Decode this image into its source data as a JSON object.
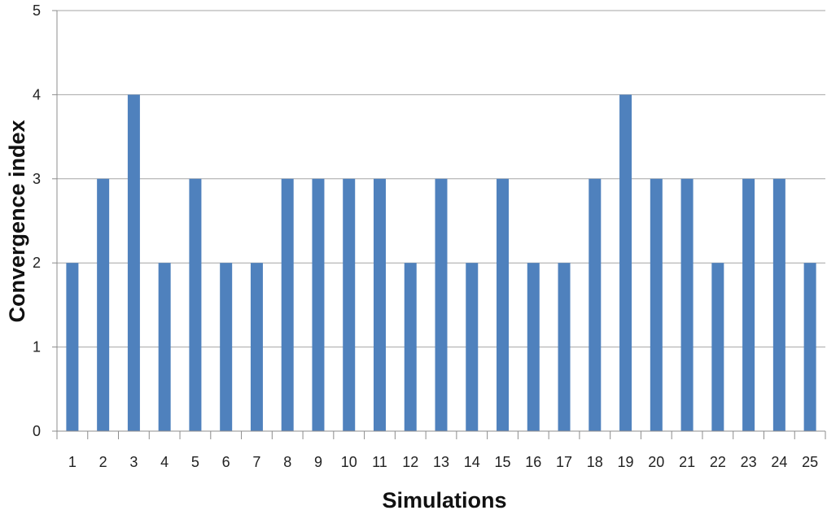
{
  "chart_data": {
    "type": "bar",
    "title": "",
    "xlabel": "Simulations",
    "ylabel": "Convergence index",
    "categories": [
      "1",
      "2",
      "3",
      "4",
      "5",
      "6",
      "7",
      "8",
      "9",
      "10",
      "11",
      "12",
      "13",
      "14",
      "15",
      "16",
      "17",
      "18",
      "19",
      "20",
      "21",
      "22",
      "23",
      "24",
      "25"
    ],
    "values": [
      2,
      3,
      4,
      2,
      3,
      2,
      2,
      3,
      3,
      3,
      3,
      2,
      3,
      2,
      3,
      2,
      2,
      3,
      4,
      3,
      3,
      2,
      3,
      3,
      2
    ],
    "ylim": [
      0,
      5
    ],
    "yticks": [
      0,
      1,
      2,
      3,
      4,
      5
    ],
    "grid": true,
    "legend": "none",
    "colors": {
      "bar": "#4f81bd",
      "grid": "#a6a6a6",
      "axis": "#8c8c8c"
    }
  }
}
